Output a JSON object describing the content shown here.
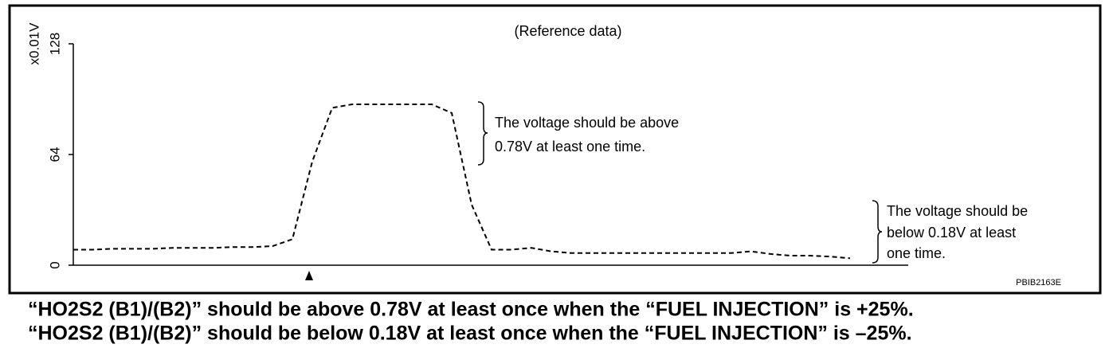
{
  "chart_data": {
    "type": "line",
    "title": "(Reference data)",
    "y_label": "x0.01V",
    "categories": [
      null,
      null,
      null,
      null,
      null,
      null,
      null,
      null,
      null,
      null,
      null,
      null,
      null,
      null,
      null,
      null,
      null,
      null,
      null,
      null,
      null,
      null,
      null,
      null,
      null,
      null,
      null,
      null,
      null,
      null,
      null,
      null,
      null,
      null,
      null,
      null,
      null,
      null,
      null,
      null
    ],
    "series": [
      {
        "color": "#000000",
        "values": [
          9,
          9,
          9.5,
          9.5,
          9.5,
          10,
          10,
          10,
          10.5,
          10.5,
          11,
          15,
          60,
          91,
          93,
          93,
          93,
          93,
          93,
          88,
          35,
          9,
          9,
          10,
          8,
          7,
          7,
          7,
          7,
          7,
          7,
          7,
          7,
          7,
          8,
          6.5,
          5.5,
          5.5,
          5,
          4
        ]
      }
    ],
    "ylim": [
      0,
      128
    ],
    "yticks": [
      0,
      64,
      128
    ],
    "annotations": [
      "The voltage should be above",
      "0.78V at least one time.",
      "The voltage should be",
      "below 0.18V at least",
      "one time."
    ],
    "code": "PBIB2163E"
  },
  "captions": [
    "“HO2S2 (B1)/(B2)” should be above 0.78V at least once when the “FUEL INJECTION” is +25%.",
    "“HO2S2 (B1)/(B2)” should be below 0.18V at least once when the “FUEL INJECTION” is –25%."
  ]
}
